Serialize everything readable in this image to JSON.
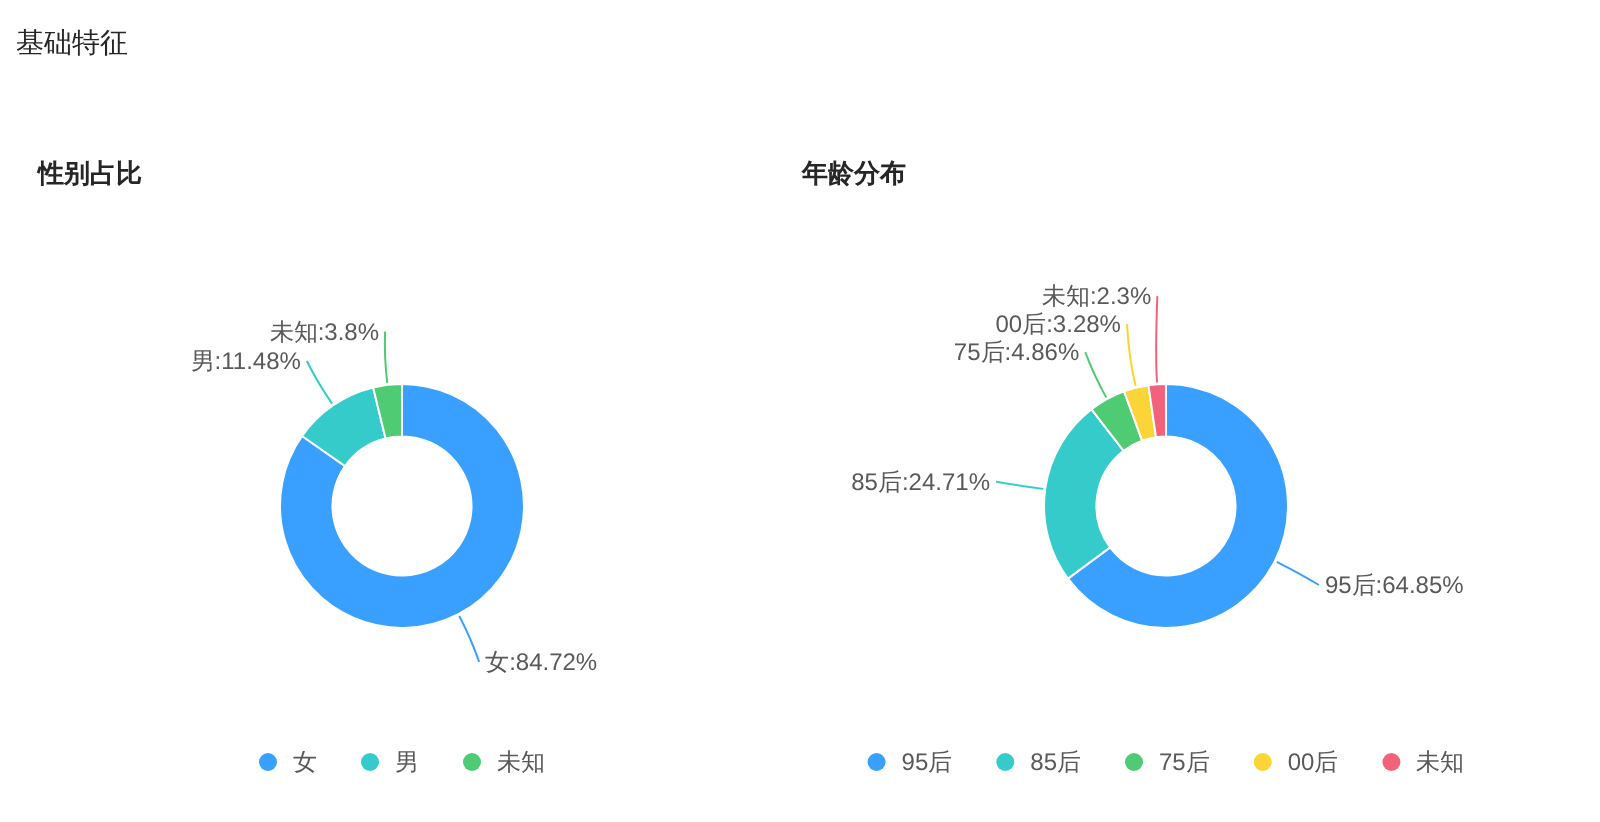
{
  "chart_data": [
    {
      "type": "donut",
      "title": "性别占比",
      "annotations": [
        "基础特征"
      ],
      "categories": [
        "女",
        "男",
        "未知"
      ],
      "values": [
        84.72,
        11.48,
        3.8
      ],
      "colors": [
        "#3aa0ff",
        "#36cbcb",
        "#4ecb73"
      ],
      "value_labels": [
        "女:84.72%",
        "男:11.48%",
        "未知:3.8%"
      ],
      "legend": "bottom"
    },
    {
      "type": "donut",
      "title": "年龄分布",
      "categories": [
        "95后",
        "85后",
        "75后",
        "00后",
        "未知"
      ],
      "values": [
        64.85,
        24.71,
        4.86,
        3.28,
        2.3
      ],
      "colors": [
        "#3aa0ff",
        "#36cbcb",
        "#4ecb73",
        "#fbd437",
        "#f2637b"
      ],
      "value_labels": [
        "95后:64.85%",
        "85后:24.71%",
        "75后:4.86%",
        "00后:3.28%",
        "未知:2.3%"
      ],
      "legend": "bottom"
    }
  ]
}
